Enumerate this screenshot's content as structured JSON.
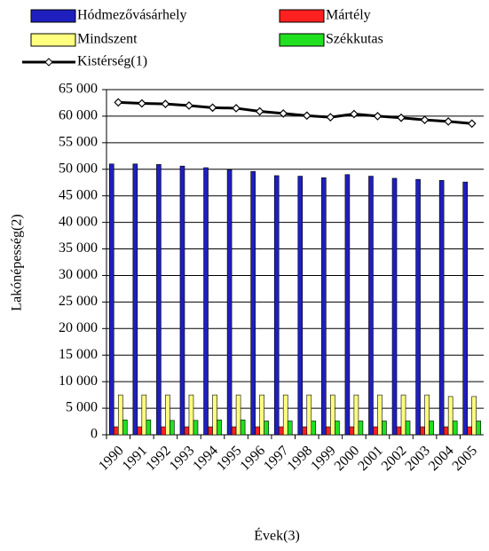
{
  "chart_data": {
    "type": "bar",
    "x_label": "Évek(3)",
    "y_label": "Lakónépesség(2)",
    "categories": [
      "1990",
      "1991",
      "1992",
      "1993",
      "1994",
      "1995",
      "1996",
      "1997",
      "1998",
      "1999",
      "2000",
      "2001",
      "2002",
      "2003",
      "2004",
      "2005"
    ],
    "series": [
      {
        "name": "Hódmezővásárhely",
        "color": "#1f1fbf",
        "values": [
          51000,
          51000,
          50900,
          50600,
          50300,
          49900,
          49600,
          48800,
          48700,
          48400,
          49000,
          48700,
          48300,
          48100,
          47900,
          47600
        ]
      },
      {
        "name": "Mártély",
        "color": "#ff2020",
        "values": [
          1500,
          1500,
          1500,
          1500,
          1500,
          1500,
          1500,
          1500,
          1500,
          1500,
          1500,
          1500,
          1500,
          1500,
          1500,
          1500
        ]
      },
      {
        "name": "Mindszent",
        "color": "#ffff80",
        "values": [
          7500,
          7500,
          7500,
          7500,
          7500,
          7500,
          7500,
          7500,
          7500,
          7500,
          7500,
          7500,
          7500,
          7500,
          7200,
          7200
        ]
      },
      {
        "name": "Székkutas",
        "color": "#20e020",
        "values": [
          2800,
          2800,
          2700,
          2700,
          2800,
          2800,
          2600,
          2600,
          2600,
          2600,
          2600,
          2600,
          2600,
          2600,
          2600,
          2600
        ]
      },
      {
        "name": "Kistérség(1)",
        "color": "#000000",
        "type": "line",
        "values": [
          62600,
          62400,
          62300,
          62000,
          61600,
          61500,
          60900,
          60500,
          60100,
          59800,
          60400,
          60000,
          59700,
          59300,
          59000,
          58600
        ]
      }
    ],
    "ylim": [
      0,
      65000
    ],
    "yticks": [
      0,
      {
        "value": 5000,
        "label": "5 000"
      },
      {
        "value": 10000,
        "label": "10 000"
      },
      {
        "value": 15000,
        "label": "15 000"
      },
      {
        "value": 20000,
        "label": "20 000"
      },
      {
        "value": 25000,
        "label": "25 000"
      },
      {
        "value": 30000,
        "label": "30 000"
      },
      {
        "value": 35000,
        "label": "35 000"
      },
      {
        "value": 40000,
        "label": "40 000"
      },
      {
        "value": 45000,
        "label": "45 000"
      },
      {
        "value": 50000,
        "label": "50 000"
      },
      {
        "value": 55000,
        "label": "55 000"
      },
      {
        "value": 60000,
        "label": "60 000"
      },
      {
        "value": 65000,
        "label": "65 000"
      }
    ],
    "grid": true
  }
}
